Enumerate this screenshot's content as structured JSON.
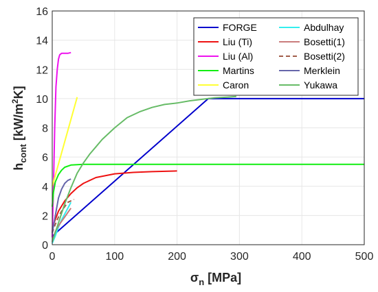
{
  "chart_data": {
    "type": "line",
    "xlabel": {
      "symbol": "σ",
      "sub": "n",
      "unit": " [MPa]"
    },
    "ylabel": {
      "main": "h",
      "sub": "cont",
      "unit_pre": " [kW/m",
      "unit_sup": "2",
      "unit_post": "K]"
    },
    "xlim": [
      0,
      500
    ],
    "ylim": [
      0,
      16
    ],
    "xticks": [
      0,
      100,
      200,
      300,
      400,
      500
    ],
    "yticks": [
      0,
      2,
      4,
      6,
      8,
      10,
      12,
      14,
      16
    ],
    "grid": true,
    "legend_position": "top-right",
    "legend_columns": 2,
    "series": [
      {
        "name": "FORGE",
        "color": "#0000cc",
        "dash": "solid",
        "x": [
          0,
          3,
          250,
          500
        ],
        "y": [
          0.5,
          0.7,
          10,
          10
        ]
      },
      {
        "name": "Liu (Ti)",
        "color": "#ee1111",
        "dash": "solid",
        "x": [
          0,
          3,
          10,
          20,
          30,
          40,
          50,
          70,
          100,
          130,
          160,
          200
        ],
        "y": [
          0.9,
          1.5,
          2.3,
          3.0,
          3.5,
          3.9,
          4.2,
          4.6,
          4.85,
          4.95,
          5.0,
          5.05
        ]
      },
      {
        "name": "Liu (Al)",
        "color": "#ee11ee",
        "dash": "solid",
        "x": [
          0,
          2,
          4,
          6,
          8,
          10,
          12,
          15,
          20,
          25,
          30
        ],
        "y": [
          0.5,
          4,
          8,
          10.8,
          12.0,
          12.7,
          13.0,
          13.1,
          13.1,
          13.1,
          13.15
        ]
      },
      {
        "name": "Martins",
        "color": "#11ee11",
        "dash": "solid",
        "x": [
          0,
          2,
          5,
          10,
          15,
          20,
          30,
          50,
          100,
          200,
          500
        ],
        "y": [
          2.6,
          3.6,
          4.3,
          4.8,
          5.1,
          5.3,
          5.45,
          5.5,
          5.5,
          5.5,
          5.5
        ]
      },
      {
        "name": "Caron",
        "color": "#ffff33",
        "dash": "solid",
        "x": [
          0,
          40
        ],
        "y": [
          4.0,
          10.1
        ]
      },
      {
        "name": "Abdulhay",
        "color": "#33eeee",
        "dash": "solid",
        "x": [
          0,
          5,
          10,
          15,
          20,
          25,
          30
        ],
        "y": [
          0.1,
          0.6,
          1.2,
          1.7,
          2.1,
          2.5,
          2.9
        ]
      },
      {
        "name": "Bosetti(1)",
        "color": "#c97b7b",
        "dash": "solid",
        "x": [
          0,
          5,
          10,
          15,
          20,
          25,
          30
        ],
        "y": [
          0.2,
          0.9,
          1.3,
          1.6,
          1.9,
          2.2,
          2.5
        ]
      },
      {
        "name": "Bosetti(2)",
        "color": "#a05c48",
        "dash": "dashed",
        "x": [
          0,
          5,
          10,
          15,
          20,
          25,
          35
        ],
        "y": [
          0.8,
          1.4,
          1.9,
          2.3,
          2.6,
          2.9,
          3.1
        ]
      },
      {
        "name": "Merklein",
        "color": "#6666aa",
        "dash": "solid",
        "x": [
          0,
          5,
          10,
          15,
          20,
          25,
          30
        ],
        "y": [
          0.8,
          2.0,
          3.2,
          3.8,
          4.2,
          4.4,
          4.5
        ]
      },
      {
        "name": "Yukawa",
        "color": "#66bb66",
        "dash": "solid",
        "x": [
          0,
          10,
          20,
          30,
          40,
          50,
          60,
          70,
          80,
          90,
          100,
          120,
          140,
          160,
          180,
          200,
          220,
          240,
          260,
          280,
          295
        ],
        "y": [
          0.2,
          1.5,
          2.8,
          3.9,
          4.9,
          5.6,
          6.2,
          6.7,
          7.2,
          7.6,
          8.0,
          8.7,
          9.1,
          9.4,
          9.6,
          9.7,
          9.85,
          9.95,
          10.05,
          10.1,
          10.15
        ]
      }
    ]
  }
}
